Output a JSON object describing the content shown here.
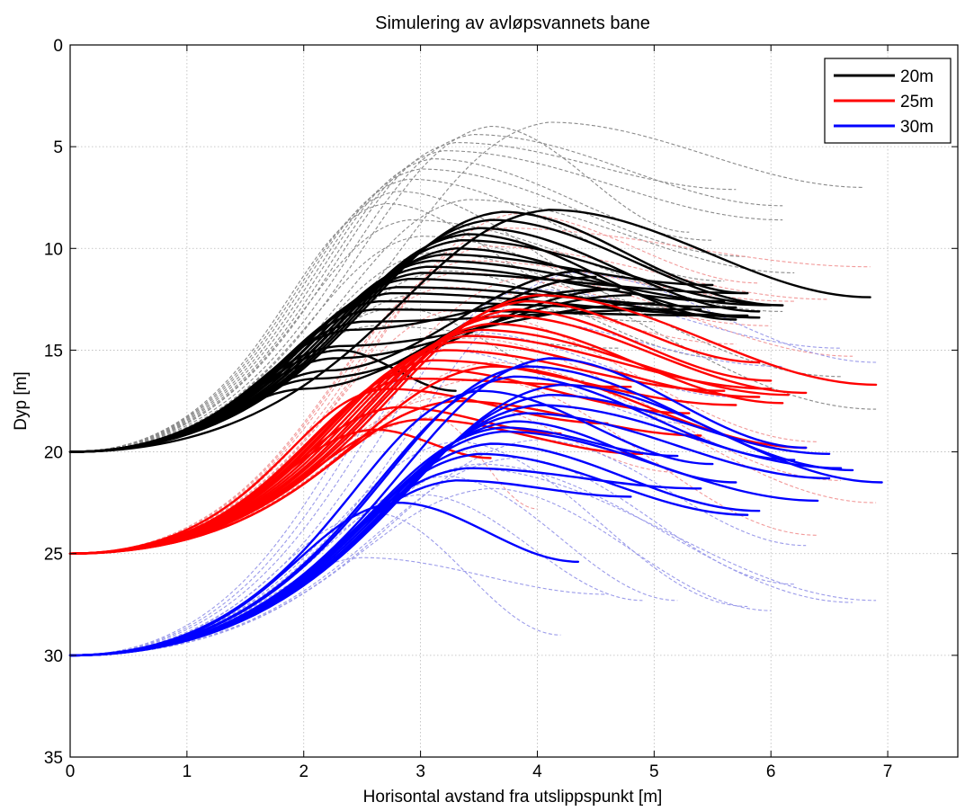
{
  "chart_data": {
    "type": "line",
    "title": "Simulering av avløpsvannets bane",
    "xlabel": "Horisontal avstand fra utslippspunkt [m]",
    "ylabel": "Dyp [m]",
    "xlim": [
      0,
      7.6
    ],
    "ylim": [
      0,
      35
    ],
    "y_reversed": true,
    "grid": true,
    "x_ticks": [
      "0",
      "1",
      "2",
      "3",
      "4",
      "5",
      "6",
      "7"
    ],
    "y_ticks": [
      "0",
      "5",
      "10",
      "15",
      "20",
      "25",
      "30",
      "35"
    ],
    "legend_position": "top-right",
    "colors": {
      "20m": "#000000",
      "25m": "#ff0000",
      "30m": "#0000ff"
    },
    "series": [
      {
        "name": "20m",
        "color": "#000000",
        "start_depth": 20,
        "solid": [
          {
            "xr": 2.0,
            "yp": 16.9,
            "xe": 4.5,
            "ye": 11.4
          },
          {
            "xr": 2.1,
            "yp": 16.4,
            "xe": 4.7,
            "ye": 12.0
          },
          {
            "xr": 2.2,
            "yp": 16.0,
            "xe": 4.4,
            "ye": 11.1
          },
          {
            "xr": 2.25,
            "yp": 15.4,
            "xe": 4.8,
            "ye": 12.3
          },
          {
            "xr": 2.3,
            "yp": 14.8,
            "xe": 5.0,
            "ye": 12.7
          },
          {
            "xr": 2.4,
            "yp": 14.0,
            "xe": 4.6,
            "ye": 12.0
          },
          {
            "xr": 2.5,
            "yp": 13.6,
            "xe": 5.2,
            "ye": 13.0
          },
          {
            "xr": 2.6,
            "yp": 13.0,
            "xe": 5.6,
            "ye": 13.3
          },
          {
            "xr": 2.65,
            "yp": 12.6,
            "xe": 5.4,
            "ye": 13.0
          },
          {
            "xr": 2.75,
            "yp": 12.2,
            "xe": 5.8,
            "ye": 13.3
          },
          {
            "xr": 2.8,
            "yp": 11.9,
            "xe": 5.7,
            "ye": 12.9
          },
          {
            "xr": 2.9,
            "yp": 11.5,
            "xe": 5.9,
            "ye": 13.4
          },
          {
            "xr": 3.0,
            "yp": 11.2,
            "xe": 5.8,
            "ye": 12.2
          },
          {
            "xr": 3.05,
            "yp": 10.9,
            "xe": 5.6,
            "ye": 12.6
          },
          {
            "xr": 3.1,
            "yp": 10.6,
            "xe": 6.0,
            "ye": 12.8
          },
          {
            "xr": 3.2,
            "yp": 10.3,
            "xe": 5.5,
            "ye": 11.8
          },
          {
            "xr": 3.3,
            "yp": 10.0,
            "xe": 5.9,
            "ye": 13.4
          },
          {
            "xr": 3.35,
            "yp": 9.6,
            "xe": 6.1,
            "ye": 12.8
          },
          {
            "xr": 3.4,
            "yp": 9.3,
            "xe": 5.7,
            "ye": 13.5
          },
          {
            "xr": 3.5,
            "yp": 9.0,
            "xe": 5.9,
            "ye": 13.1
          },
          {
            "xr": 3.6,
            "yp": 8.6,
            "xe": 6.1,
            "ye": 12.8
          },
          {
            "xr": 3.7,
            "yp": 8.2,
            "xe": 5.8,
            "ye": 12.2
          },
          {
            "xr": 4.1,
            "yp": 8.1,
            "xe": 6.85,
            "ye": 12.4
          },
          {
            "xr": 2.3,
            "yp": 15.0,
            "xe": 3.3,
            "ye": 17.0
          }
        ],
        "dashed": [
          {
            "xr": 2.7,
            "yp": 7.8,
            "xe": 4.5,
            "ye": 12.4
          },
          {
            "xr": 2.8,
            "yp": 7.2,
            "xe": 5.1,
            "ye": 12.9
          },
          {
            "xr": 2.9,
            "yp": 6.6,
            "xe": 5.6,
            "ye": 11.6
          },
          {
            "xr": 3.0,
            "yp": 6.1,
            "xe": 5.8,
            "ye": 10.4
          },
          {
            "xr": 3.1,
            "yp": 5.6,
            "xe": 5.5,
            "ye": 9.6
          },
          {
            "xr": 3.2,
            "yp": 5.2,
            "xe": 6.1,
            "ye": 8.6
          },
          {
            "xr": 3.3,
            "yp": 4.8,
            "xe": 5.7,
            "ye": 7.1
          },
          {
            "xr": 3.45,
            "yp": 4.4,
            "xe": 6.1,
            "ye": 7.9
          },
          {
            "xr": 3.6,
            "yp": 4.0,
            "xe": 5.3,
            "ye": 9.2
          },
          {
            "xr": 4.1,
            "yp": 3.8,
            "xe": 6.8,
            "ye": 7.0
          },
          {
            "xr": 2.9,
            "yp": 8.6,
            "xe": 6.1,
            "ye": 13.1
          },
          {
            "xr": 3.0,
            "yp": 9.4,
            "xe": 6.6,
            "ye": 16.3
          },
          {
            "xr": 3.1,
            "yp": 10.2,
            "xe": 6.9,
            "ye": 17.9
          },
          {
            "xr": 3.2,
            "yp": 11.1,
            "xe": 5.6,
            "ye": 15.4
          },
          {
            "xr": 3.0,
            "yp": 12.2,
            "xe": 5.0,
            "ye": 13.6
          },
          {
            "xr": 2.8,
            "yp": 12.9,
            "xe": 4.4,
            "ye": 16.5
          },
          {
            "xr": 2.6,
            "yp": 13.8,
            "xe": 4.7,
            "ye": 14.9
          },
          {
            "xr": 3.4,
            "yp": 7.6,
            "xe": 6.2,
            "ye": 11.2
          }
        ]
      },
      {
        "name": "25m",
        "color": "#ff0000",
        "start_depth": 25,
        "solid": [
          {
            "xr": 2.7,
            "yp": 16.9,
            "xe": 4.6,
            "ye": 18.6
          },
          {
            "xr": 2.9,
            "yp": 16.4,
            "xe": 4.8,
            "ye": 16.8
          },
          {
            "xr": 3.0,
            "yp": 15.9,
            "xe": 5.3,
            "ye": 18.1
          },
          {
            "xr": 3.1,
            "yp": 15.5,
            "xe": 5.7,
            "ye": 17.7
          },
          {
            "xr": 3.2,
            "yp": 15.0,
            "xe": 5.6,
            "ye": 17.0
          },
          {
            "xr": 3.3,
            "yp": 14.6,
            "xe": 5.9,
            "ye": 17.3
          },
          {
            "xr": 3.4,
            "yp": 14.3,
            "xe": 6.0,
            "ye": 16.9
          },
          {
            "xr": 3.5,
            "yp": 14.0,
            "xe": 6.15,
            "ye": 17.2
          },
          {
            "xr": 3.6,
            "yp": 13.7,
            "xe": 6.1,
            "ye": 17.6
          },
          {
            "xr": 3.7,
            "yp": 13.3,
            "xe": 6.3,
            "ye": 17.1
          },
          {
            "xr": 3.8,
            "yp": 13.0,
            "xe": 6.0,
            "ye": 16.5
          },
          {
            "xr": 3.9,
            "yp": 12.6,
            "xe": 5.9,
            "ye": 15.6
          },
          {
            "xr": 4.0,
            "yp": 12.3,
            "xe": 6.9,
            "ye": 16.7
          },
          {
            "xr": 2.8,
            "yp": 17.8,
            "xe": 4.2,
            "ye": 19.1
          },
          {
            "xr": 3.0,
            "yp": 18.4,
            "xe": 4.9,
            "ye": 20.1
          },
          {
            "xr": 3.6,
            "yp": 15.8,
            "xe": 6.3,
            "ye": 19.8
          },
          {
            "xr": 3.3,
            "yp": 17.5,
            "xe": 5.4,
            "ye": 19.2
          },
          {
            "xr": 2.6,
            "yp": 18.9,
            "xe": 3.6,
            "ye": 20.3
          }
        ],
        "dashed": [
          {
            "xr": 3.2,
            "yp": 11.9,
            "xe": 5.7,
            "ye": 14.7
          },
          {
            "xr": 3.3,
            "yp": 11.2,
            "xe": 6.0,
            "ye": 13.8
          },
          {
            "xr": 3.4,
            "yp": 10.6,
            "xe": 6.2,
            "ye": 12.6
          },
          {
            "xr": 3.55,
            "yp": 9.9,
            "xe": 6.5,
            "ye": 12.5
          },
          {
            "xr": 3.7,
            "yp": 9.0,
            "xe": 6.85,
            "ye": 10.9
          },
          {
            "xr": 3.8,
            "yp": 8.3,
            "xe": 5.9,
            "ye": 11.7
          },
          {
            "xr": 3.3,
            "yp": 13.0,
            "xe": 6.4,
            "ye": 19.5
          },
          {
            "xr": 3.4,
            "yp": 14.4,
            "xe": 6.6,
            "ye": 21.4
          },
          {
            "xr": 3.6,
            "yp": 15.6,
            "xe": 6.9,
            "ye": 22.5
          },
          {
            "xr": 3.5,
            "yp": 16.4,
            "xe": 6.4,
            "ye": 24.1
          },
          {
            "xr": 3.2,
            "yp": 17.3,
            "xe": 5.2,
            "ye": 21.0
          },
          {
            "xr": 3.1,
            "yp": 18.3,
            "xe": 4.0,
            "ye": 22.8
          },
          {
            "xr": 3.9,
            "yp": 11.4,
            "xe": 6.7,
            "ye": 15.3
          }
        ]
      },
      {
        "name": "30m",
        "color": "#0000ff",
        "start_depth": 30,
        "solid": [
          {
            "xr": 3.3,
            "yp": 21.4,
            "xe": 4.8,
            "ye": 22.2
          },
          {
            "xr": 3.4,
            "yp": 20.8,
            "xe": 5.4,
            "ye": 21.8
          },
          {
            "xr": 3.5,
            "yp": 20.1,
            "xe": 5.8,
            "ye": 23.1
          },
          {
            "xr": 3.6,
            "yp": 19.6,
            "xe": 5.9,
            "ye": 22.9
          },
          {
            "xr": 3.7,
            "yp": 19.0,
            "xe": 6.4,
            "ye": 22.4
          },
          {
            "xr": 3.8,
            "yp": 18.5,
            "xe": 5.7,
            "ye": 21.5
          },
          {
            "xr": 3.9,
            "yp": 18.1,
            "xe": 6.5,
            "ye": 21.3
          },
          {
            "xr": 4.0,
            "yp": 17.7,
            "xe": 6.6,
            "ye": 20.8
          },
          {
            "xr": 4.1,
            "yp": 17.2,
            "xe": 6.5,
            "ye": 20.1
          },
          {
            "xr": 4.2,
            "yp": 16.7,
            "xe": 6.95,
            "ye": 21.5
          },
          {
            "xr": 3.8,
            "yp": 16.3,
            "xe": 6.2,
            "ye": 20.4
          },
          {
            "xr": 3.9,
            "yp": 15.8,
            "xe": 6.7,
            "ye": 20.9
          },
          {
            "xr": 4.1,
            "yp": 15.4,
            "xe": 6.3,
            "ye": 19.8
          },
          {
            "xr": 3.5,
            "yp": 17.0,
            "xe": 5.5,
            "ye": 20.6
          },
          {
            "xr": 3.7,
            "yp": 18.8,
            "xe": 5.2,
            "ye": 20.2
          },
          {
            "xr": 2.8,
            "yp": 22.5,
            "xe": 4.35,
            "ye": 25.4
          }
        ],
        "dashed": [
          {
            "xr": 3.2,
            "yp": 15.0,
            "xe": 5.3,
            "ye": 18.6
          },
          {
            "xr": 3.4,
            "yp": 14.1,
            "xe": 5.7,
            "ye": 17.3
          },
          {
            "xr": 3.6,
            "yp": 13.3,
            "xe": 6.1,
            "ye": 15.8
          },
          {
            "xr": 3.9,
            "yp": 12.0,
            "xe": 6.6,
            "ye": 14.9
          },
          {
            "xr": 4.3,
            "yp": 11.2,
            "xe": 6.9,
            "ye": 15.6
          },
          {
            "xr": 3.3,
            "yp": 19.5,
            "xe": 5.8,
            "ye": 27.6
          },
          {
            "xr": 3.5,
            "yp": 20.6,
            "xe": 6.7,
            "ye": 27.4
          },
          {
            "xr": 3.2,
            "yp": 21.2,
            "xe": 5.2,
            "ye": 27.3
          },
          {
            "xr": 3.4,
            "yp": 20.8,
            "xe": 6.9,
            "ye": 27.3
          },
          {
            "xr": 3.8,
            "yp": 20.3,
            "xe": 6.2,
            "ye": 26.5
          },
          {
            "xr": 3.0,
            "yp": 22.1,
            "xe": 4.9,
            "ye": 27.3
          },
          {
            "xr": 3.6,
            "yp": 21.8,
            "xe": 6.0,
            "ye": 27.8
          },
          {
            "xr": 2.6,
            "yp": 23.0,
            "xe": 4.2,
            "ye": 29.0
          },
          {
            "xr": 2.5,
            "yp": 25.2,
            "xe": 4.6,
            "ye": 27.0
          },
          {
            "xr": 4.0,
            "yp": 19.4,
            "xe": 6.3,
            "ye": 24.6
          }
        ]
      }
    ]
  }
}
